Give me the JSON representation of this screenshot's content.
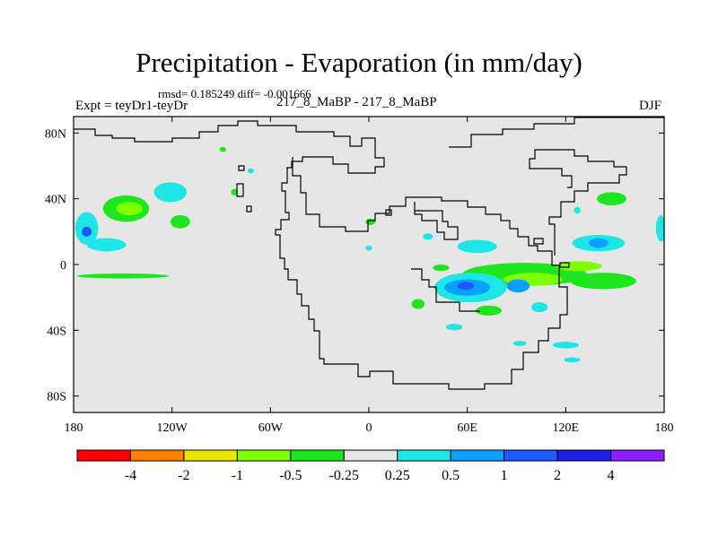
{
  "title": "Precipitation - Evaporation (in mm/day)",
  "stats_line": "rmsd= 0.185249 diff= -0.001666",
  "expt_line": "Expt = teyDr1-teyDr",
  "case_line": "217_8_MaBP - 217_8_MaBP",
  "season": "DJF",
  "axes": {
    "x_ticks": [
      {
        "value": -180,
        "label": "180"
      },
      {
        "value": -120,
        "label": "120W"
      },
      {
        "value": -60,
        "label": "60W"
      },
      {
        "value": 0,
        "label": "0"
      },
      {
        "value": 60,
        "label": "60E"
      },
      {
        "value": 120,
        "label": "120E"
      },
      {
        "value": 180,
        "label": "180"
      }
    ],
    "y_ticks": [
      {
        "value": 80,
        "label": "80N"
      },
      {
        "value": 40,
        "label": "40N"
      },
      {
        "value": 0,
        "label": "0"
      },
      {
        "value": -40,
        "label": "40S"
      },
      {
        "value": -80,
        "label": "80S"
      }
    ],
    "xlim": [
      -180,
      180
    ],
    "ylim": [
      -90,
      90
    ]
  },
  "colors": {
    "background_field": "#e6e6e6",
    "coastline": "#000000"
  },
  "colorbar": {
    "colors": [
      "#ff0000",
      "#ff8000",
      "#e6e600",
      "#80ff00",
      "#1ee61e",
      "#e6e6e6",
      "#1ee6e6",
      "#0aa0ff",
      "#1e5aff",
      "#1e1ee6",
      "#8c1eff"
    ],
    "labels": [
      "-4",
      "-2",
      "-1",
      "-0.5",
      "-0.25",
      "0.25",
      "0.5",
      "1",
      "2",
      "4"
    ]
  },
  "chart_data": {
    "type": "heatmap",
    "title": "Precipitation - Evaporation (in mm/day)",
    "units": "mm/day",
    "levels": [
      -4,
      -2,
      -1,
      -0.5,
      -0.25,
      0.25,
      0.5,
      1,
      2,
      4
    ],
    "features": [
      {
        "lon": -148,
        "lat": 34,
        "rx": 14,
        "ry": 8,
        "level": -0.25
      },
      {
        "lon": -146,
        "lat": 34,
        "rx": 8,
        "ry": 4,
        "level": -0.5
      },
      {
        "lon": -121,
        "lat": 44,
        "rx": 10,
        "ry": 6,
        "level": 0.25
      },
      {
        "lon": -115,
        "lat": 26,
        "rx": 6,
        "ry": 4,
        "level": -0.25
      },
      {
        "lon": -172,
        "lat": 22,
        "rx": 7,
        "ry": 10,
        "level": 0.25
      },
      {
        "lon": -172,
        "lat": 20,
        "rx": 3,
        "ry": 3,
        "level": 1
      },
      {
        "lon": -160,
        "lat": 12,
        "rx": 12,
        "ry": 4,
        "level": 0.25
      },
      {
        "lon": -150,
        "lat": -7,
        "rx": 28,
        "ry": 1.5,
        "level": -0.25
      },
      {
        "lon": -82,
        "lat": 44,
        "rx": 2,
        "ry": 2,
        "level": -0.25
      },
      {
        "lon": -72,
        "lat": 57,
        "rx": 2,
        "ry": 1.5,
        "level": 0.25
      },
      {
        "lon": 1,
        "lat": 26,
        "rx": 3,
        "ry": 2,
        "level": -0.25
      },
      {
        "lon": 0,
        "lat": 10,
        "rx": 2,
        "ry": 1.5,
        "level": 0.25
      },
      {
        "lon": 66,
        "lat": 11,
        "rx": 12,
        "ry": 4,
        "level": 0.25
      },
      {
        "lon": 36,
        "lat": 17,
        "rx": 3,
        "ry": 2,
        "level": 0.25
      },
      {
        "lon": 44,
        "lat": -2,
        "rx": 5,
        "ry": 2,
        "level": -0.25
      },
      {
        "lon": 95,
        "lat": -6,
        "rx": 38,
        "ry": 7,
        "level": -0.25
      },
      {
        "lon": 100,
        "lat": -9,
        "rx": 18,
        "ry": 4,
        "level": -0.5
      },
      {
        "lon": 143,
        "lat": -10,
        "rx": 20,
        "ry": 5,
        "level": -0.25
      },
      {
        "lon": 128,
        "lat": -1,
        "rx": 14,
        "ry": 3,
        "level": -0.5
      },
      {
        "lon": 62,
        "lat": -14,
        "rx": 22,
        "ry": 9,
        "level": 0.25
      },
      {
        "lon": 60,
        "lat": -14,
        "rx": 14,
        "ry": 5,
        "level": 0.5
      },
      {
        "lon": 59,
        "lat": -13,
        "rx": 5,
        "ry": 2.5,
        "level": 1
      },
      {
        "lon": 91,
        "lat": -13,
        "rx": 7,
        "ry": 4,
        "level": 0.5
      },
      {
        "lon": 104,
        "lat": -26,
        "rx": 5,
        "ry": 3,
        "level": 0.25
      },
      {
        "lon": 73,
        "lat": -28,
        "rx": 8,
        "ry": 3,
        "level": -0.25
      },
      {
        "lon": 52,
        "lat": -38,
        "rx": 5,
        "ry": 2,
        "level": 0.25
      },
      {
        "lon": 30,
        "lat": -24,
        "rx": 4,
        "ry": 3,
        "level": -0.25
      },
      {
        "lon": 140,
        "lat": 13,
        "rx": 16,
        "ry": 5,
        "level": 0.25
      },
      {
        "lon": 140,
        "lat": 13,
        "rx": 6,
        "ry": 3,
        "level": 0.5
      },
      {
        "lon": 148,
        "lat": 40,
        "rx": 9,
        "ry": 4,
        "level": -0.25
      },
      {
        "lon": 127,
        "lat": 33,
        "rx": 2,
        "ry": 2,
        "level": 0.25
      },
      {
        "lon": 178,
        "lat": 22,
        "rx": 3,
        "ry": 8,
        "level": 0.25
      },
      {
        "lon": 120,
        "lat": -49,
        "rx": 8,
        "ry": 2,
        "level": 0.25
      },
      {
        "lon": 92,
        "lat": -48,
        "rx": 4,
        "ry": 1.5,
        "level": 0.25
      },
      {
        "lon": 124,
        "lat": -58,
        "rx": 5,
        "ry": 1.5,
        "level": 0.25
      },
      {
        "lon": -89,
        "lat": 70,
        "rx": 2,
        "ry": 1.5,
        "level": -0.25
      }
    ]
  }
}
